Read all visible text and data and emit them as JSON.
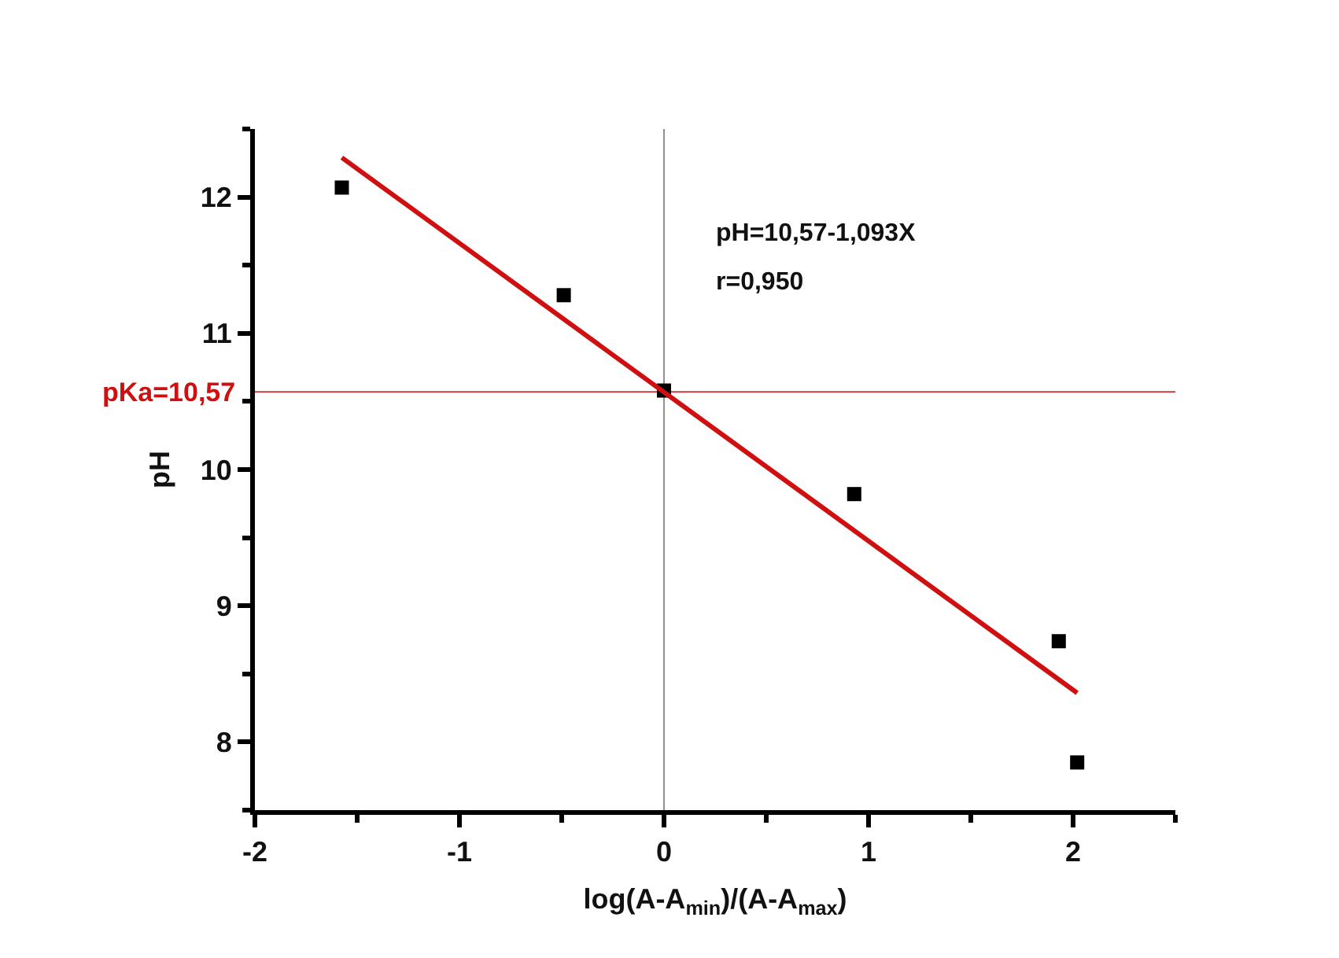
{
  "chart_data": {
    "type": "scatter",
    "xlabel": "log(A-A$_{min}$)/(A-A$_{max}$)",
    "ylabel": "pH",
    "series": [
      {
        "color": "#000000",
        "marker": "square",
        "x": [
          -1.575,
          -0.49,
          0.0,
          0.93,
          1.93,
          2.02
        ],
        "values": [
          12.07,
          11.28,
          10.58,
          9.82,
          8.74,
          7.85
        ]
      },
      {
        "type": "line",
        "color": "#d01010",
        "marker": "none",
        "line_style": "solid",
        "x": [
          -1.575,
          2.02
        ],
        "values": [
          12.29,
          8.36
        ]
      }
    ],
    "xlim": [
      -2,
      2.5
    ],
    "xticks": [
      -2,
      -1,
      0,
      1,
      2
    ],
    "ylim": [
      7.5,
      12.5
    ],
    "yticks": [
      8,
      9,
      10,
      11,
      12
    ],
    "ref_lines": [
      {
        "axis": "y",
        "value": 10.57,
        "label": "pKa=10,57",
        "color": "#c04040"
      },
      {
        "axis": "x",
        "value": 0,
        "color": "#909090"
      }
    ],
    "annotations": [
      "pH=10,57-1,093X",
      "r=0,950"
    ],
    "grid": false
  }
}
